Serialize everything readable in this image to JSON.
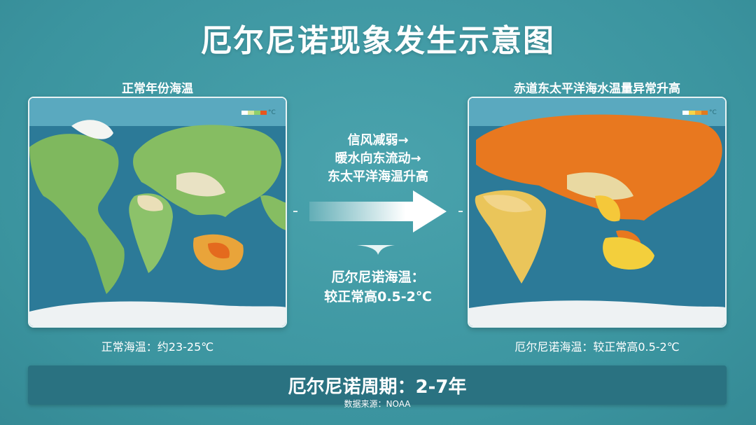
{
  "title": "厄尔尼诺现象发生示意图",
  "left": {
    "label": "正常年份海温",
    "caption": "正常海温：约23-25℃",
    "legend_unit": "°C",
    "legend_colors": [
      "#ffffff",
      "#d6e69a",
      "#8fcf6a",
      "#e8561e"
    ]
  },
  "right": {
    "label": "赤道东太平洋海水温量异常升高",
    "caption": "厄尔尼诺海温：较正常高0.5-2℃",
    "legend_unit": "°C",
    "legend_colors": [
      "#ffffff",
      "#f5d547",
      "#f0a531",
      "#e07a1f"
    ]
  },
  "middle": {
    "steps": [
      "信风减弱→",
      "暖水向东流动→",
      "东太平洋海温升高"
    ],
    "result_lines": [
      "厄尔尼诺海温：",
      "较正常高0.5-2℃"
    ]
  },
  "footer": {
    "period": "厄尔尼诺周期：2-7年",
    "source": "数据来源：NOAA"
  }
}
